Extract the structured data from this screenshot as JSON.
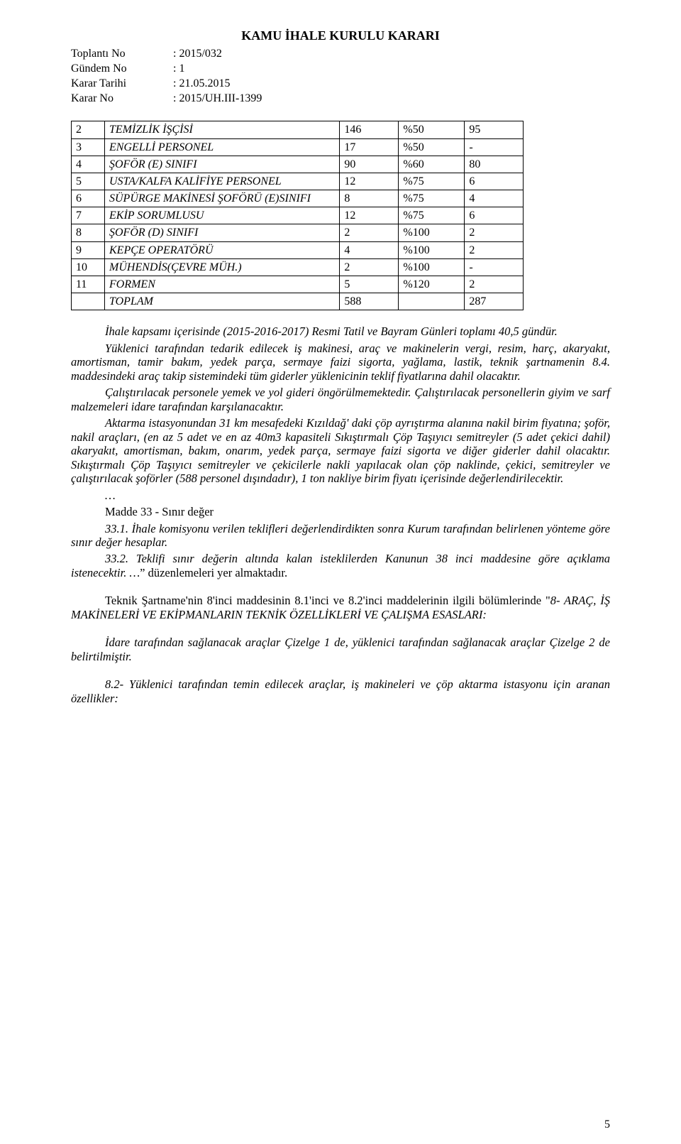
{
  "header": {
    "title": "KAMU İHALE KURULU KARARI",
    "lines": [
      {
        "label": "Toplantı No",
        "value": ": 2015/032"
      },
      {
        "label": "Gündem No",
        "value": ": 1"
      },
      {
        "label": "Karar Tarihi",
        "value": ": 21.05.2015"
      },
      {
        "label": "Karar No",
        "value": ": 2015/UH.III-1399"
      }
    ]
  },
  "table": {
    "rows": [
      {
        "n": "2",
        "name": "TEMİZLİK İŞÇİSİ",
        "c3": "146",
        "c4": "%50",
        "c5": "95"
      },
      {
        "n": "3",
        "name": "ENGELLİ PERSONEL",
        "c3": "17",
        "c4": "%50",
        "c5": "-"
      },
      {
        "n": "4",
        "name": "ŞOFÖR (E) SINIFI",
        "c3": "90",
        "c4": "%60",
        "c5": "80"
      },
      {
        "n": "5",
        "name": "USTA/KALFA KALİFİYE PERSONEL",
        "c3": "12",
        "c4": "%75",
        "c5": "6"
      },
      {
        "n": "6",
        "name": "SÜPÜRGE MAKİNESİ ŞOFÖRÜ (E)SINIFI",
        "c3": "8",
        "c4": "%75",
        "c5": "4"
      },
      {
        "n": "7",
        "name": "EKİP SORUMLUSU",
        "c3": "12",
        "c4": "%75",
        "c5": "6"
      },
      {
        "n": "8",
        "name": "ŞOFÖR (D) SINIFI",
        "c3": "2",
        "c4": "%100",
        "c5": "2"
      },
      {
        "n": "9",
        "name": "KEPÇE OPERATÖRÜ",
        "c3": "4",
        "c4": "%100",
        "c5": "2"
      },
      {
        "n": "10",
        "name": "MÜHENDİS(ÇEVRE MÜH.)",
        "c3": "2",
        "c4": "%100",
        "c5": "-"
      },
      {
        "n": "11",
        "name": "FORMEN",
        "c3": "5",
        "c4": "%120",
        "c5": "2"
      }
    ],
    "total": {
      "name": "TOPLAM",
      "c3": "588",
      "c4": "",
      "c5": "287"
    }
  },
  "para": {
    "p1": "İhale kapsamı içerisinde (2015-2016-2017) Resmi Tatil ve Bayram Günleri toplamı 40,5 gündür.",
    "p2": "Yüklenici tarafından tedarik edilecek iş makinesi, araç ve makinelerin vergi, resim, harç, akaryakıt, amortisman, tamir bakım, yedek parça, sermaye faizi sigorta, yağlama, lastik, teknik şartnamenin 8.4. maddesindeki araç takip sistemindeki tüm giderler yüklenicinin teklif fiyatlarına dahil olacaktır.",
    "p3a": "Çalıştırılacak personele yemek ve yol gideri öngörülmemektedir. Çalıştırılacak personellerin giyim ve sarf malzemeleri idare tarafından karşılanacaktır.",
    "p4": "Aktarma istasyonundan 31 km mesafedeki Kızıldağ' daki çöp ayrıştırma alanına nakil birim fiyatına; şoför, nakil araçları, (en az 5 adet ve en az 40m3 kapasiteli Sıkıştırmalı Çöp Taşıyıcı semitreyler (5 adet çekici dahil) akaryakıt, amortisman, bakım, onarım, yedek parça, sermaye faizi sigorta ve diğer giderler  dahil olacaktır. Sıkıştırmalı Çöp Taşıyıcı semitreyler ve çekicilerle nakli yapılacak olan çöp naklinde, çekici, semitreyler ve çalıştırılacak şoförler (588 personel dışındadır), 1 ton nakliye birim fiyatı içerisinde değerlendirilecektir.",
    "ellipsis1": "…",
    "m33": "Madde 33 - Sınır değer",
    "m331": "33.1. İhale komisyonu verilen teklifleri değerlendirdikten sonra Kurum tarafından belirlenen yönteme göre sınır değer hesaplar.",
    "m332a": "33.2. Teklifi sınır değerin altında kalan isteklilerden Kanunun 38 inci maddesine göre açıklama istenecektir. …",
    "m332b": "” düzenlemeleri yer almaktadır.",
    "tech1a": "Teknik Şartname'nin 8'inci maddesinin 8.1'inci ve 8.2'inci maddelerinin ilgili bölümlerinde \"",
    "tech1b": "8- ARAÇ, İŞ MAKİNELERİ VE EKİPMANLARIN TEKNİK ÖZELLİKLERİ VE ÇALIŞMA ESASLARI:",
    "tech2": "İdare tarafından sağlanacak araçlar Çizelge 1 de, yüklenici tarafından sağlanacak araçlar Çizelge 2 de  belirtilmiştir.",
    "tech3": "8.2- Yüklenici tarafından temin edilecek araçlar, iş makineleri ve çöp aktarma istasyonu için aranan özellikler:"
  },
  "page_number": "5"
}
